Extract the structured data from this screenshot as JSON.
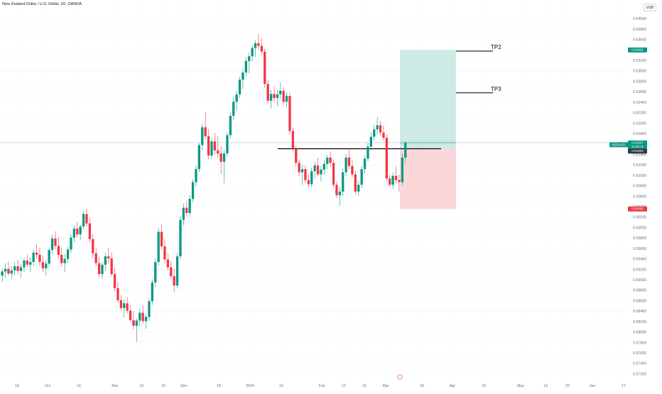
{
  "header": {
    "title": "New Zealand Dollar / U.S. Dollar, 1D, OANDA",
    "currency": "USD"
  },
  "chart_data": {
    "type": "candlestick",
    "title": "New Zealand Dollar / U.S. Dollar, 1D, OANDA",
    "symbol": "NZDUSD",
    "y_ticks": [
      "0.64000",
      "0.63800",
      "0.63600",
      "0.63400",
      "0.63200",
      "0.63000",
      "0.62800",
      "0.62600",
      "0.62400",
      "0.62200",
      "0.62000",
      "0.61800",
      "0.61600",
      "0.61400",
      "0.61200",
      "0.61000",
      "0.60800",
      "0.60600",
      "0.60400",
      "0.60200",
      "0.60000",
      "0.59800",
      "0.59600",
      "0.59400",
      "0.59200",
      "0.59000",
      "0.58800",
      "0.58600",
      "0.58400",
      "0.58200",
      "0.58000",
      "0.57800",
      "0.57600",
      "0.57400",
      "0.57200"
    ],
    "ylim": [
      0.5712,
      0.6412
    ],
    "x_labels": [
      "18",
      "Oct",
      "16",
      "Nov",
      "13",
      "22",
      "Dec",
      "18",
      "2024",
      "15",
      "Feb",
      "12",
      "21",
      "Mar",
      "18",
      "Apr",
      "15",
      "May",
      "13",
      "22",
      "Jun",
      "17"
    ],
    "colors": {
      "up": "#089981",
      "down": "#f23645",
      "grid": "#f2f3f5",
      "axis_text": "#6a6d78"
    },
    "price_labels": {
      "tp_price": "0.63402",
      "last_symbol": "NZDUSD",
      "last_price": "0.61627",
      "countdown": "11:00:11",
      "entry_price": "0.61505",
      "sl_price": "0.60356"
    },
    "position": {
      "entry": 0.61505,
      "take_profit": 0.63402,
      "stop_loss": 0.60356,
      "last": 0.61627
    },
    "annotations": {
      "tp2": {
        "label": "TP2",
        "price": 0.6338
      },
      "tp3": {
        "label": "TP3",
        "price": 0.6258
      },
      "entry_line_price": 0.6151
    },
    "candles_ohlc": [
      [
        0.5908,
        0.5921,
        0.5896,
        0.5916
      ],
      [
        0.5916,
        0.5932,
        0.5903,
        0.5921
      ],
      [
        0.5921,
        0.5934,
        0.5908,
        0.5912
      ],
      [
        0.5912,
        0.5926,
        0.5901,
        0.5918
      ],
      [
        0.5918,
        0.5935,
        0.5909,
        0.5926
      ],
      [
        0.5926,
        0.5938,
        0.5911,
        0.5917
      ],
      [
        0.5917,
        0.593,
        0.5904,
        0.5924
      ],
      [
        0.5924,
        0.5942,
        0.5915,
        0.5937
      ],
      [
        0.5937,
        0.5949,
        0.5924,
        0.5929
      ],
      [
        0.5929,
        0.5943,
        0.5915,
        0.5934
      ],
      [
        0.5934,
        0.5958,
        0.5925,
        0.5952
      ],
      [
        0.5952,
        0.5968,
        0.5941,
        0.5948
      ],
      [
        0.5948,
        0.5962,
        0.5927,
        0.5934
      ],
      [
        0.5934,
        0.5947,
        0.5915,
        0.5922
      ],
      [
        0.5922,
        0.5938,
        0.5908,
        0.5931
      ],
      [
        0.5931,
        0.5962,
        0.5924,
        0.5957
      ],
      [
        0.5957,
        0.5986,
        0.5949,
        0.5979
      ],
      [
        0.5979,
        0.5993,
        0.5958,
        0.5965
      ],
      [
        0.5965,
        0.5982,
        0.594,
        0.5948
      ],
      [
        0.5948,
        0.5962,
        0.5925,
        0.5932
      ],
      [
        0.5932,
        0.5949,
        0.5915,
        0.594
      ],
      [
        0.594,
        0.5963,
        0.5932,
        0.5958
      ],
      [
        0.5958,
        0.5987,
        0.5951,
        0.5981
      ],
      [
        0.5981,
        0.6004,
        0.5972,
        0.5998
      ],
      [
        0.5998,
        0.6011,
        0.5981,
        0.5987
      ],
      [
        0.5987,
        0.6005,
        0.5976,
        0.6002
      ],
      [
        0.6002,
        0.6032,
        0.5997,
        0.6026
      ],
      [
        0.6026,
        0.6036,
        0.6002,
        0.6008
      ],
      [
        0.6008,
        0.6019,
        0.5971,
        0.5978
      ],
      [
        0.5978,
        0.5988,
        0.5942,
        0.5951
      ],
      [
        0.5951,
        0.5962,
        0.5925,
        0.5932
      ],
      [
        0.5932,
        0.5944,
        0.5905,
        0.5911
      ],
      [
        0.5911,
        0.5934,
        0.5902,
        0.5929
      ],
      [
        0.5929,
        0.5952,
        0.5918,
        0.5945
      ],
      [
        0.5945,
        0.5961,
        0.5932,
        0.5941
      ],
      [
        0.5941,
        0.5953,
        0.5906,
        0.5911
      ],
      [
        0.5911,
        0.5923,
        0.5878,
        0.5884
      ],
      [
        0.5884,
        0.5896,
        0.5856,
        0.5861
      ],
      [
        0.5861,
        0.5871,
        0.5841,
        0.5846
      ],
      [
        0.5846,
        0.5862,
        0.5828,
        0.5855
      ],
      [
        0.5855,
        0.5866,
        0.5836,
        0.5841
      ],
      [
        0.5841,
        0.5852,
        0.5818,
        0.5823
      ],
      [
        0.5823,
        0.5839,
        0.5805,
        0.5812
      ],
      [
        0.5812,
        0.5826,
        0.5781,
        0.5822
      ],
      [
        0.5822,
        0.5845,
        0.5811,
        0.5837
      ],
      [
        0.5837,
        0.5851,
        0.5816,
        0.5821
      ],
      [
        0.5821,
        0.5834,
        0.5806,
        0.5829
      ],
      [
        0.5829,
        0.5865,
        0.5822,
        0.5859
      ],
      [
        0.5859,
        0.5901,
        0.5852,
        0.5895
      ],
      [
        0.5895,
        0.5941,
        0.5886,
        0.5934
      ],
      [
        0.5934,
        0.5999,
        0.5927,
        0.5992
      ],
      [
        0.5992,
        0.6006,
        0.5958,
        0.5964
      ],
      [
        0.5964,
        0.5978,
        0.5932,
        0.5939
      ],
      [
        0.5939,
        0.5951,
        0.5918,
        0.5924
      ],
      [
        0.5924,
        0.5936,
        0.5901,
        0.5907
      ],
      [
        0.5907,
        0.5922,
        0.5876,
        0.5889
      ],
      [
        0.5889,
        0.5952,
        0.5884,
        0.5945
      ],
      [
        0.5945,
        0.6022,
        0.5939,
        0.6015
      ],
      [
        0.6015,
        0.6046,
        0.6005,
        0.6038
      ],
      [
        0.6038,
        0.6049,
        0.6022,
        0.6028
      ],
      [
        0.6028,
        0.6062,
        0.6021,
        0.6055
      ],
      [
        0.6055,
        0.6093,
        0.6048,
        0.6087
      ],
      [
        0.6087,
        0.6119,
        0.6079,
        0.6112
      ],
      [
        0.6112,
        0.6162,
        0.6106,
        0.6158
      ],
      [
        0.6158,
        0.6198,
        0.6148,
        0.6192
      ],
      [
        0.6192,
        0.6221,
        0.6169,
        0.6175
      ],
      [
        0.6175,
        0.6189,
        0.6131,
        0.6138
      ],
      [
        0.6138,
        0.6172,
        0.6131,
        0.6165
      ],
      [
        0.6165,
        0.6181,
        0.614,
        0.6148
      ],
      [
        0.6148,
        0.6175,
        0.6134,
        0.6142
      ],
      [
        0.6142,
        0.6156,
        0.6102,
        0.6126
      ],
      [
        0.6126,
        0.6149,
        0.6085,
        0.6142
      ],
      [
        0.6142,
        0.6182,
        0.6136,
        0.6177
      ],
      [
        0.6177,
        0.6221,
        0.6171,
        0.6214
      ],
      [
        0.6214,
        0.6249,
        0.6206,
        0.6241
      ],
      [
        0.6241,
        0.6262,
        0.6223,
        0.6255
      ],
      [
        0.6255,
        0.6289,
        0.6248,
        0.6283
      ],
      [
        0.6283,
        0.6305,
        0.6265,
        0.6297
      ],
      [
        0.6297,
        0.6327,
        0.629,
        0.6319
      ],
      [
        0.6319,
        0.6335,
        0.6296,
        0.6328
      ],
      [
        0.6328,
        0.6349,
        0.6318,
        0.6344
      ],
      [
        0.6344,
        0.6359,
        0.6327,
        0.6353
      ],
      [
        0.6353,
        0.6371,
        0.6341,
        0.6348
      ],
      [
        0.6348,
        0.6362,
        0.6331,
        0.6337
      ],
      [
        0.6337,
        0.6342,
        0.6268,
        0.6275
      ],
      [
        0.6275,
        0.6283,
        0.6238,
        0.6243
      ],
      [
        0.6243,
        0.6263,
        0.6228,
        0.6256
      ],
      [
        0.6256,
        0.6271,
        0.624,
        0.6248
      ],
      [
        0.6248,
        0.6264,
        0.6232,
        0.6255
      ],
      [
        0.6255,
        0.6278,
        0.6246,
        0.6262
      ],
      [
        0.6262,
        0.6268,
        0.6235,
        0.6241
      ],
      [
        0.6241,
        0.6259,
        0.6231,
        0.6252
      ],
      [
        0.6252,
        0.6258,
        0.6178,
        0.6185
      ],
      [
        0.6185,
        0.6191,
        0.6146,
        0.6151
      ],
      [
        0.6151,
        0.6158,
        0.6118,
        0.6124
      ],
      [
        0.6124,
        0.6131,
        0.6098,
        0.6106
      ],
      [
        0.6106,
        0.6121,
        0.6082,
        0.6112
      ],
      [
        0.6112,
        0.6119,
        0.6086,
        0.6091
      ],
      [
        0.6091,
        0.6103,
        0.6077,
        0.6083
      ],
      [
        0.6083,
        0.6114,
        0.6078,
        0.6108
      ],
      [
        0.6108,
        0.6126,
        0.6094,
        0.6119
      ],
      [
        0.6119,
        0.6134,
        0.6098,
        0.6102
      ],
      [
        0.6102,
        0.6118,
        0.6089,
        0.6111
      ],
      [
        0.6111,
        0.6129,
        0.6101,
        0.6122
      ],
      [
        0.6122,
        0.6139,
        0.6112,
        0.6134
      ],
      [
        0.6134,
        0.6146,
        0.6116,
        0.6124
      ],
      [
        0.6124,
        0.6131,
        0.6076,
        0.6082
      ],
      [
        0.6082,
        0.6088,
        0.6056,
        0.6062
      ],
      [
        0.6062,
        0.6078,
        0.6042,
        0.6069
      ],
      [
        0.6069,
        0.6113,
        0.6061,
        0.6106
      ],
      [
        0.6106,
        0.6141,
        0.6099,
        0.6134
      ],
      [
        0.6134,
        0.6151,
        0.6112,
        0.6118
      ],
      [
        0.6118,
        0.6129,
        0.6096,
        0.6102
      ],
      [
        0.6102,
        0.6109,
        0.6063,
        0.6069
      ],
      [
        0.6069,
        0.6089,
        0.6061,
        0.6082
      ],
      [
        0.6082,
        0.6118,
        0.6076,
        0.6112
      ],
      [
        0.6112,
        0.6139,
        0.6104,
        0.6132
      ],
      [
        0.6132,
        0.6162,
        0.6126,
        0.6155
      ],
      [
        0.6155,
        0.6183,
        0.6148,
        0.6174
      ],
      [
        0.6174,
        0.6197,
        0.6166,
        0.6188
      ],
      [
        0.6188,
        0.6212,
        0.6178,
        0.6196
      ],
      [
        0.6196,
        0.6204,
        0.6176,
        0.6182
      ],
      [
        0.6182,
        0.6195,
        0.6166,
        0.6172
      ],
      [
        0.6172,
        0.6178,
        0.6089,
        0.6094
      ],
      [
        0.6094,
        0.6101,
        0.6078,
        0.6082
      ],
      [
        0.6082,
        0.6106,
        0.6074,
        0.6099
      ],
      [
        0.6099,
        0.6117,
        0.6084,
        0.6091
      ],
      [
        0.6091,
        0.6101,
        0.6069,
        0.6087
      ],
      [
        0.6087,
        0.6142,
        0.6081,
        0.6134
      ],
      [
        0.6134,
        0.6166,
        0.6124,
        0.6162
      ]
    ]
  }
}
